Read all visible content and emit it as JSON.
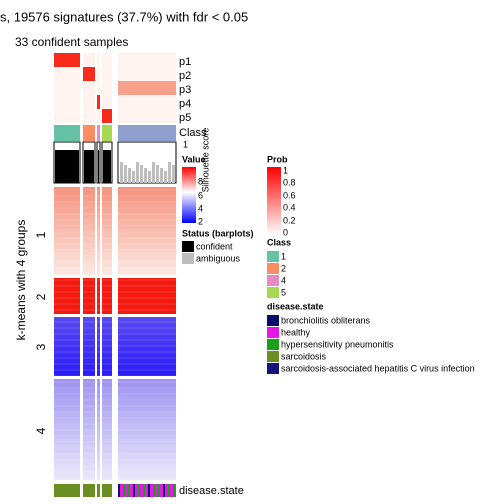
{
  "title": "s, 19576 signatures (37.7%) with fdr < 0.05",
  "subtitle": "33 confident samples",
  "row_annotations": [
    "p1",
    "p2",
    "p3",
    "p4",
    "p5",
    "Class"
  ],
  "bottom_annotation": "disease.state",
  "y_title": "k-means with 4 groups",
  "row_groups": [
    "1",
    "2",
    "3",
    "4"
  ],
  "legends": {
    "silhouette": {
      "title": "Silhouette score",
      "labels": [
        "1"
      ]
    },
    "value": {
      "title": "Value",
      "labels": [
        "8",
        "6",
        "4",
        "2"
      ]
    },
    "status": {
      "title": "Status (barplots)",
      "labels": [
        "confident",
        "ambiguous"
      ]
    },
    "prob": {
      "title": "Prob",
      "labels": [
        "1",
        "0.8",
        "0.6",
        "0.4",
        "0.2",
        "0"
      ]
    },
    "class": {
      "title": "Class",
      "labels": [
        "1",
        "2",
        "4",
        "5"
      ]
    },
    "disease_state": {
      "title": "disease.state",
      "labels": [
        "bronchiolitis obliterans",
        "healthy",
        "hypersensitivity pneumonitis",
        "sarcoidosis",
        "sarcoidosis-associated hepatitis C virus infection"
      ]
    }
  }
}
